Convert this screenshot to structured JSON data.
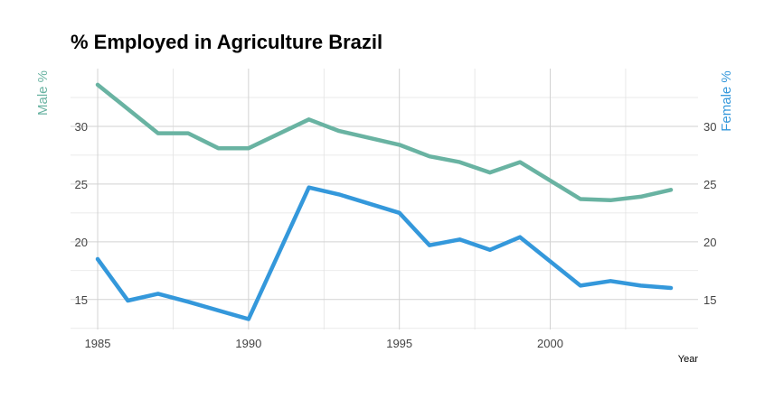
{
  "chart_data": {
    "type": "line",
    "title": "% Employed in Agriculture Brazil",
    "xlabel": "Year",
    "ylabel_left": "Male %",
    "ylabel_right": "Female %",
    "xlim": [
      1984.1,
      2004.9
    ],
    "ylim": [
      12.4,
      35.0
    ],
    "x_ticks": [
      1985,
      1990,
      1995,
      2000
    ],
    "y_ticks": [
      15,
      20,
      25,
      30
    ],
    "grid": true,
    "colors": {
      "male": "#69b3a2",
      "female": "#3498db"
    },
    "series": [
      {
        "name": "Male %",
        "x": [
          1985,
          1987,
          1988,
          1989,
          1990,
          1992,
          1993,
          1995,
          1996,
          1997,
          1998,
          1999,
          2001,
          2002,
          2003,
          2004
        ],
        "values": [
          33.6,
          29.4,
          29.4,
          28.1,
          28.1,
          30.6,
          29.6,
          28.4,
          27.4,
          26.9,
          26.0,
          26.9,
          23.7,
          23.6,
          23.9,
          24.5
        ]
      },
      {
        "name": "Female %",
        "x": [
          1985,
          1986,
          1987,
          1988,
          1990,
          1992,
          1993,
          1995,
          1996,
          1997,
          1998,
          1999,
          2001,
          2002,
          2003,
          2004
        ],
        "values": [
          18.5,
          14.9,
          15.5,
          14.8,
          13.3,
          24.7,
          24.1,
          22.5,
          19.7,
          20.2,
          19.3,
          20.4,
          16.2,
          16.6,
          16.2,
          16.0
        ]
      }
    ]
  }
}
